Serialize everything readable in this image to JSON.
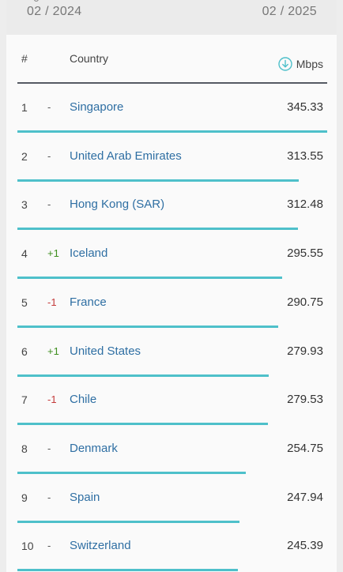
{
  "date_range": {
    "start": "02 / 2024",
    "end": "02 / 2025",
    "tick": "0"
  },
  "table": {
    "columns": {
      "rank": "#",
      "country": "Country",
      "speed": "Mbps"
    },
    "icons": {
      "speed_header": "download-circle-icon"
    },
    "colors": {
      "bar": "#4ec0ca",
      "link": "#2f6fa3",
      "up": "#3f8f1f",
      "down": "#c43a3a"
    },
    "rows": [
      {
        "rank": "1",
        "change": "-",
        "country": "Singapore",
        "speed": "345.33",
        "value": 345.33
      },
      {
        "rank": "2",
        "change": "-",
        "country": "United Arab Emirates",
        "speed": "313.55",
        "value": 313.55
      },
      {
        "rank": "3",
        "change": "-",
        "country": "Hong Kong (SAR)",
        "speed": "312.48",
        "value": 312.48
      },
      {
        "rank": "4",
        "change": "+1",
        "country": "Iceland",
        "speed": "295.55",
        "value": 295.55
      },
      {
        "rank": "5",
        "change": "-1",
        "country": "France",
        "speed": "290.75",
        "value": 290.75
      },
      {
        "rank": "6",
        "change": "+1",
        "country": "United States",
        "speed": "279.93",
        "value": 279.93
      },
      {
        "rank": "7",
        "change": "-1",
        "country": "Chile",
        "speed": "279.53",
        "value": 279.53
      },
      {
        "rank": "8",
        "change": "-",
        "country": "Denmark",
        "speed": "254.75",
        "value": 254.75
      },
      {
        "rank": "9",
        "change": "-",
        "country": "Spain",
        "speed": "247.94",
        "value": 247.94
      },
      {
        "rank": "10",
        "change": "-",
        "country": "Switzerland",
        "speed": "245.39",
        "value": 245.39
      }
    ]
  }
}
